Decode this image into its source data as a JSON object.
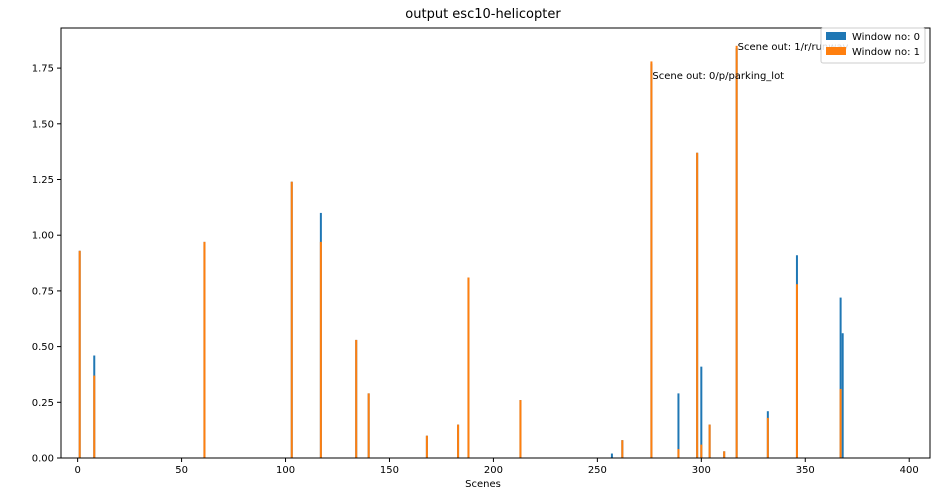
{
  "chart_data": {
    "type": "bar",
    "title": "output esc10-helicopter",
    "xlabel": "Scenes",
    "ylabel": "",
    "xlim": [
      -8,
      410
    ],
    "ylim": [
      0,
      1.93
    ],
    "xticks": [
      0,
      50,
      100,
      150,
      200,
      250,
      300,
      350,
      400
    ],
    "yticks": [
      0.0,
      0.25,
      0.5,
      0.75,
      1.0,
      1.25,
      1.5,
      1.75
    ],
    "ytick_labels": [
      "0.00",
      "0.25",
      "0.50",
      "0.75",
      "1.00",
      "1.25",
      "1.50",
      "1.75"
    ],
    "legend_position": "top-right",
    "colors": {
      "window0": "#1f77b4",
      "window1": "#ff7f0e"
    },
    "series": [
      {
        "name": "Window no: 0",
        "points": [
          {
            "x": 1,
            "y": 0.93
          },
          {
            "x": 8,
            "y": 0.46
          },
          {
            "x": 61,
            "y": 0.97
          },
          {
            "x": 103,
            "y": 1.24
          },
          {
            "x": 117,
            "y": 1.1
          },
          {
            "x": 134,
            "y": 0.53
          },
          {
            "x": 140,
            "y": 0.29
          },
          {
            "x": 168,
            "y": 0.1
          },
          {
            "x": 183,
            "y": 0.15
          },
          {
            "x": 188,
            "y": 0.81
          },
          {
            "x": 213,
            "y": 0.26
          },
          {
            "x": 257,
            "y": 0.02
          },
          {
            "x": 262,
            "y": 0.08
          },
          {
            "x": 276,
            "y": 1.77
          },
          {
            "x": 289,
            "y": 0.29
          },
          {
            "x": 298,
            "y": 1.37
          },
          {
            "x": 300,
            "y": 0.41
          },
          {
            "x": 304,
            "y": 0.15
          },
          {
            "x": 311,
            "y": 0.03
          },
          {
            "x": 317,
            "y": 1.84
          },
          {
            "x": 332,
            "y": 0.21
          },
          {
            "x": 346,
            "y": 0.91
          },
          {
            "x": 367,
            "y": 0.72
          },
          {
            "x": 368,
            "y": 0.56
          }
        ]
      },
      {
        "name": "Window no: 1",
        "points": [
          {
            "x": 1,
            "y": 0.93
          },
          {
            "x": 8,
            "y": 0.37
          },
          {
            "x": 61,
            "y": 0.97
          },
          {
            "x": 103,
            "y": 1.24
          },
          {
            "x": 117,
            "y": 0.97
          },
          {
            "x": 134,
            "y": 0.53
          },
          {
            "x": 140,
            "y": 0.29
          },
          {
            "x": 168,
            "y": 0.1
          },
          {
            "x": 183,
            "y": 0.15
          },
          {
            "x": 188,
            "y": 0.81
          },
          {
            "x": 213,
            "y": 0.26
          },
          {
            "x": 262,
            "y": 0.08
          },
          {
            "x": 276,
            "y": 1.78
          },
          {
            "x": 289,
            "y": 0.04
          },
          {
            "x": 298,
            "y": 1.37
          },
          {
            "x": 300,
            "y": 0.06
          },
          {
            "x": 304,
            "y": 0.15
          },
          {
            "x": 311,
            "y": 0.03
          },
          {
            "x": 317,
            "y": 1.85
          },
          {
            "x": 332,
            "y": 0.18
          },
          {
            "x": 346,
            "y": 0.78
          },
          {
            "x": 367,
            "y": 0.31
          }
        ]
      }
    ],
    "annotations": [
      {
        "text": "Scene out: 0/p/parking_lot",
        "x": 276,
        "y": 1.72
      },
      {
        "text": "Scene out: 1/r/runway",
        "x": 317,
        "y": 1.85
      }
    ]
  }
}
